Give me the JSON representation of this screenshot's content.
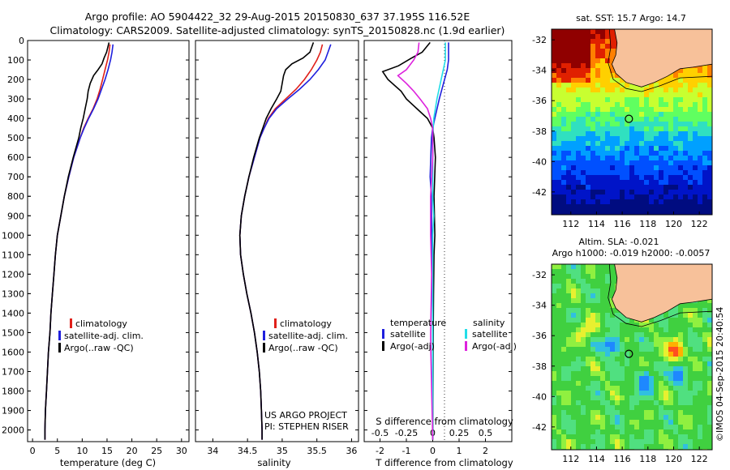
{
  "header": {
    "line1": "Argo profile: AO 5904422_32 29-Aug-2015 20150830_637 37.195S 116.52E",
    "line2": "Climatology: CARS2009. Satellite-adjusted climatology: synTS_20150828.nc (1.9d earlier)"
  },
  "credit": "©IMOS 04-Sep-2015 20:40:54",
  "colors": {
    "climatology": "#e0201a",
    "satellite": "#1f1fdd",
    "argo": "#000000",
    "sat_sal": "#22dde8",
    "argo_sal": "#dd22dd",
    "land": "#f7c19a"
  },
  "chart_data": [
    {
      "type": "line",
      "name": "temperature-profile",
      "xlabel": "temperature (deg C)",
      "ylabel": "",
      "xlim": [
        -1,
        31.5
      ],
      "ylim": [
        2060,
        0
      ],
      "xticks": [
        0,
        5,
        10,
        15,
        20,
        25,
        30
      ],
      "yticks": [
        0,
        100,
        200,
        300,
        400,
        500,
        600,
        700,
        800,
        900,
        1000,
        1100,
        1200,
        1300,
        1400,
        1500,
        1600,
        1700,
        1800,
        1900,
        2000
      ],
      "legend": [
        "climatology",
        "satellite-adj. clim.",
        "Argo(..raw -QC)"
      ],
      "series": [
        {
          "name": "climatology",
          "color": "#e0201a",
          "depth": [
            20,
            60,
            100,
            150,
            200,
            250,
            300,
            350,
            400,
            450,
            500,
            600,
            700,
            800,
            900,
            1000,
            1100,
            1200,
            1300,
            1400,
            1500,
            1600,
            1700,
            1800,
            1900,
            2000,
            2050
          ],
          "values": [
            15.6,
            15.4,
            15.1,
            14.6,
            14.1,
            13.6,
            13.0,
            12.2,
            11.2,
            10.3,
            9.6,
            8.3,
            7.3,
            6.4,
            5.7,
            5.0,
            4.6,
            4.3,
            4.0,
            3.7,
            3.5,
            3.2,
            3.0,
            2.8,
            2.6,
            2.5,
            2.5
          ]
        },
        {
          "name": "satellite-adj. clim.",
          "color": "#1f1fdd",
          "depth": [
            20,
            60,
            100,
            150,
            200,
            250,
            300,
            350,
            400,
            450,
            500,
            600,
            700,
            800,
            900,
            1000,
            1100,
            1200,
            1300,
            1400,
            1500,
            1600,
            1700,
            1800,
            1900,
            2000,
            2050
          ],
          "values": [
            16.2,
            16.0,
            15.7,
            15.2,
            14.6,
            13.9,
            13.2,
            12.3,
            11.3,
            10.4,
            9.6,
            8.3,
            7.3,
            6.4,
            5.7,
            5.0,
            4.6,
            4.3,
            4.0,
            3.7,
            3.5,
            3.2,
            3.0,
            2.8,
            2.6,
            2.5,
            2.5
          ]
        },
        {
          "name": "Argo(..raw -QC)",
          "color": "#000000",
          "depth": [
            10,
            30,
            60,
            90,
            120,
            150,
            180,
            220,
            260,
            300,
            350,
            400,
            450,
            500,
            600,
            700,
            800,
            900,
            1000,
            1100,
            1200,
            1300,
            1400,
            1500,
            1600,
            1700,
            1800,
            1900,
            2000,
            2050
          ],
          "values": [
            15.4,
            15.2,
            14.9,
            14.4,
            14.0,
            13.2,
            12.3,
            11.6,
            11.2,
            11.0,
            10.6,
            10.2,
            9.7,
            9.3,
            8.2,
            7.2,
            6.4,
            5.7,
            5.0,
            4.6,
            4.3,
            4.0,
            3.7,
            3.5,
            3.2,
            3.0,
            2.8,
            2.6,
            2.5,
            2.5
          ]
        }
      ]
    },
    {
      "type": "line",
      "name": "salinity-profile",
      "xlabel": "salinity",
      "ylabel": "",
      "xlim": [
        33.75,
        36.1
      ],
      "ylim": [
        2060,
        0
      ],
      "xticks": [
        34,
        34.5,
        35,
        35.5,
        36
      ],
      "xticklabels": [
        "34",
        "34.5",
        "35",
        "35.5",
        "36"
      ],
      "legend": [
        "climatology",
        "satellite-adj. clim.",
        "Argo(..raw -QC)"
      ],
      "annotation": [
        "US ARGO PROJECT",
        "PI: STEPHEN RISER"
      ],
      "series": [
        {
          "name": "climatology",
          "color": "#e0201a",
          "depth": [
            20,
            60,
            100,
            150,
            200,
            250,
            300,
            350,
            400,
            450,
            500,
            600,
            700,
            800,
            900,
            1000,
            1100,
            1200,
            1300,
            1400,
            1500,
            1600,
            1700,
            1800,
            1900,
            2000,
            2050
          ],
          "values": [
            35.58,
            35.55,
            35.5,
            35.42,
            35.32,
            35.2,
            35.05,
            34.9,
            34.8,
            34.74,
            34.68,
            34.6,
            34.52,
            34.46,
            34.41,
            34.39,
            34.4,
            34.44,
            34.49,
            34.55,
            34.6,
            34.64,
            34.67,
            34.69,
            34.7,
            34.71,
            34.71
          ]
        },
        {
          "name": "satellite-adj. clim.",
          "color": "#1f1fdd",
          "depth": [
            20,
            60,
            100,
            150,
            200,
            250,
            300,
            350,
            400,
            450,
            500,
            600,
            700,
            800,
            900,
            1000,
            1100,
            1200,
            1300,
            1400,
            1500,
            1600,
            1700,
            1800,
            1900,
            2000,
            2050
          ],
          "values": [
            35.7,
            35.66,
            35.62,
            35.52,
            35.4,
            35.25,
            35.08,
            34.92,
            34.81,
            34.74,
            34.68,
            34.6,
            34.52,
            34.46,
            34.41,
            34.39,
            34.4,
            34.44,
            34.49,
            34.55,
            34.6,
            34.64,
            34.67,
            34.69,
            34.7,
            34.71,
            34.71
          ]
        },
        {
          "name": "Argo(..raw -QC)",
          "color": "#000000",
          "depth": [
            10,
            40,
            60,
            90,
            120,
            150,
            180,
            220,
            260,
            300,
            350,
            400,
            450,
            500,
            600,
            700,
            800,
            900,
            1000,
            1100,
            1200,
            1300,
            1400,
            1500,
            1600,
            1700,
            1800,
            1900,
            2000,
            2050
          ],
          "values": [
            35.45,
            35.42,
            35.4,
            35.3,
            35.14,
            35.05,
            35.02,
            35.0,
            34.98,
            34.92,
            34.84,
            34.77,
            34.72,
            34.67,
            34.59,
            34.52,
            34.46,
            34.41,
            34.39,
            34.4,
            34.44,
            34.49,
            34.55,
            34.6,
            34.64,
            34.67,
            34.69,
            34.7,
            34.71,
            34.71
          ]
        }
      ]
    },
    {
      "type": "line",
      "name": "difference-profile",
      "xlabel": "T difference from climatology",
      "top_axis_label": "S difference from climatology",
      "xlim": [
        -2.6,
        3.0
      ],
      "ylim": [
        2060,
        0
      ],
      "xticks": [
        -2,
        -1,
        0,
        1,
        2
      ],
      "top_ticks": [
        -0.5,
        -0.25,
        0,
        0.25,
        0.5
      ],
      "top_ticklabels": [
        "-0.5",
        "-0.25",
        "0",
        "0.25",
        "0.5"
      ],
      "legend_temperature": {
        "title": "temperature",
        "items": [
          "satellite",
          "Argo(-adj)"
        ]
      },
      "legend_salinity": {
        "title": "salinity",
        "items": [
          "satellite",
          "Argo(-adj)"
        ]
      },
      "series": [
        {
          "name": "T satellite",
          "color": "#1f1fdd",
          "depth": [
            10,
            60,
            100,
            150,
            200,
            300,
            400,
            450,
            500,
            700,
            800,
            1000,
            1200,
            1400,
            2050
          ],
          "values": [
            0.6,
            0.6,
            0.6,
            0.55,
            0.45,
            0.25,
            0.08,
            0,
            -0.05,
            -0.1,
            -0.05,
            -0.04,
            -0.03,
            0,
            0
          ]
        },
        {
          "name": "T Argo(-adj)",
          "color": "#000000",
          "depth": [
            10,
            60,
            90,
            130,
            160,
            200,
            260,
            300,
            350,
            400,
            450,
            500,
            600,
            800,
            1000,
            1100,
            1300,
            1500,
            2050
          ],
          "values": [
            -0.1,
            -0.4,
            -0.8,
            -1.3,
            -1.9,
            -1.7,
            -1.2,
            -1.0,
            -0.6,
            -0.2,
            0,
            0.05,
            0.1,
            0.05,
            0.08,
            0.05,
            0.03,
            0.02,
            0
          ]
        },
        {
          "name": "S satellite",
          "color": "#22dde8",
          "depth": [
            10,
            60,
            100,
            200,
            300,
            400,
            500,
            700,
            800,
            900,
            1000,
            1200,
            2050
          ],
          "values": [
            0.12,
            0.12,
            0.12,
            0.08,
            0.04,
            0.01,
            0,
            0,
            0,
            0.01,
            0,
            0,
            0
          ]
        },
        {
          "name": "S Argo(-adj)",
          "color": "#dd22dd",
          "depth": [
            10,
            60,
            100,
            150,
            180,
            220,
            260,
            300,
            350,
            400,
            450,
            600,
            800,
            1000,
            1200,
            1500,
            1550,
            2050
          ],
          "values": [
            -0.13,
            -0.14,
            -0.18,
            -0.25,
            -0.33,
            -0.25,
            -0.18,
            -0.12,
            -0.05,
            -0.02,
            0,
            0,
            -0.02,
            -0.02,
            -0.01,
            -0.02,
            -0.02,
            0
          ]
        }
      ]
    },
    {
      "type": "heatmap",
      "name": "sst-map",
      "title": "sat. SST: 15.7 Argo: 14.7",
      "xlim": [
        110.5,
        123
      ],
      "ylim": [
        -43.5,
        -31.3
      ],
      "xticks": [
        112,
        114,
        116,
        118,
        120,
        122
      ],
      "yticks": [
        -32,
        -34,
        -36,
        -38,
        -40,
        -42
      ],
      "marker": {
        "lon": 116.52,
        "lat": -37.195
      }
    },
    {
      "type": "heatmap",
      "name": "sla-map",
      "title": "Altim. SLA: -0.021",
      "subtitle": "Argo h1000: -0.019 h2000: -0.0057",
      "xlim": [
        110.5,
        123
      ],
      "ylim": [
        -43.5,
        -31.3
      ],
      "xticks": [
        112,
        114,
        116,
        118,
        120,
        122
      ],
      "yticks": [
        -32,
        -34,
        -36,
        -38,
        -40,
        -42
      ],
      "marker": {
        "lon": 116.52,
        "lat": -37.195
      }
    }
  ]
}
